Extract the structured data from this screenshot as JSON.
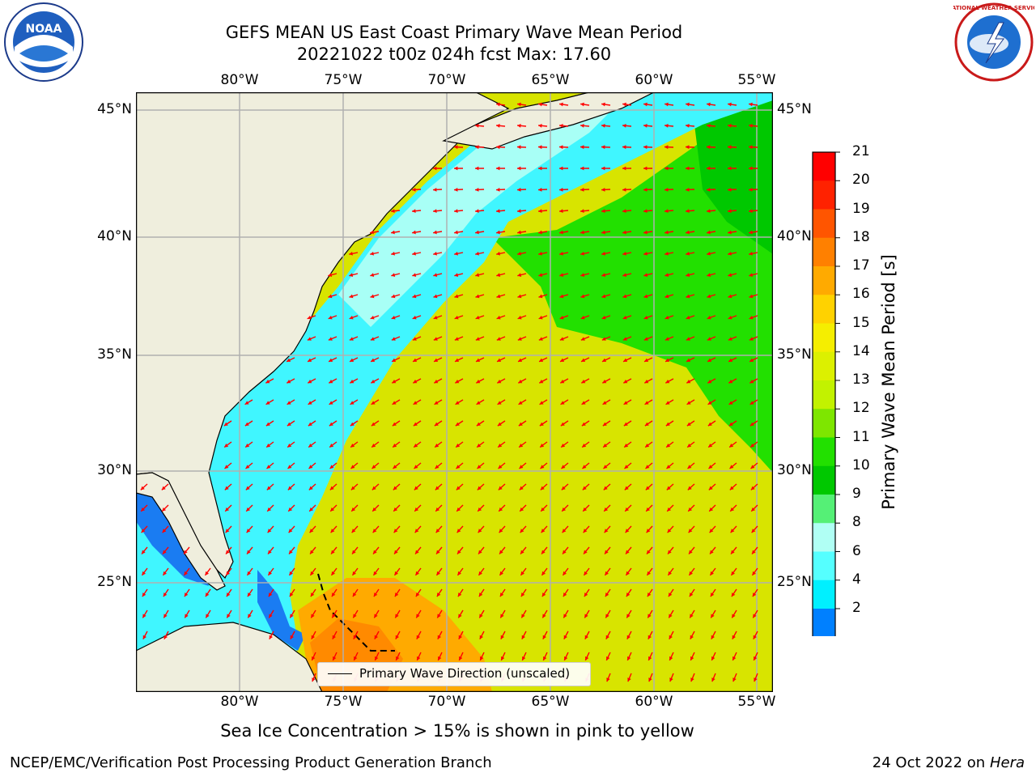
{
  "header": {
    "title_line1": "GEFS MEAN US East Coast Primary Wave Mean Period",
    "title_line2": "20221022 t00z 024h fcst   Max: 17.60"
  },
  "map": {
    "lon_labels": [
      "80°W",
      "75°W",
      "70°W",
      "65°W",
      "60°W",
      "55°W"
    ],
    "lat_labels": [
      "45°N",
      "40°N",
      "35°N",
      "30°N",
      "25°N"
    ],
    "ocean_color": "#d4e000",
    "land_color": "#efeedd",
    "arrow_color": "#ff0000"
  },
  "legend": {
    "label": "Primary Wave Direction (unscaled)"
  },
  "colorbar": {
    "title": "Primary Wave Mean Period [s]",
    "ticks": [
      "21",
      "20",
      "19",
      "18",
      "17",
      "16",
      "15",
      "14",
      "13",
      "12",
      "11",
      "10",
      "9",
      "8",
      "6",
      "4",
      "2"
    ],
    "colors": [
      "#ff0000",
      "#ff2200",
      "#ff5500",
      "#ff8000",
      "#ffaa00",
      "#ffd200",
      "#f5ee00",
      "#dcf000",
      "#c2f200",
      "#7ee600",
      "#22e000",
      "#00c800",
      "#55f076",
      "#b0fff4",
      "#55ffff",
      "#00f0ff",
      "#0080ff"
    ],
    "under_color": "#0000ff"
  },
  "footer": {
    "note": "Sea Ice Concentration > 15% is shown in pink to yellow",
    "left": "NCEP/EMC/Verification Post Processing Product Generation Branch",
    "right_date": "24 Oct 2022 on",
    "right_host": "Hera"
  },
  "logos": {
    "noaa_text": "NOAA",
    "nws_text": "NATIONAL WEATHER SERVICE"
  }
}
